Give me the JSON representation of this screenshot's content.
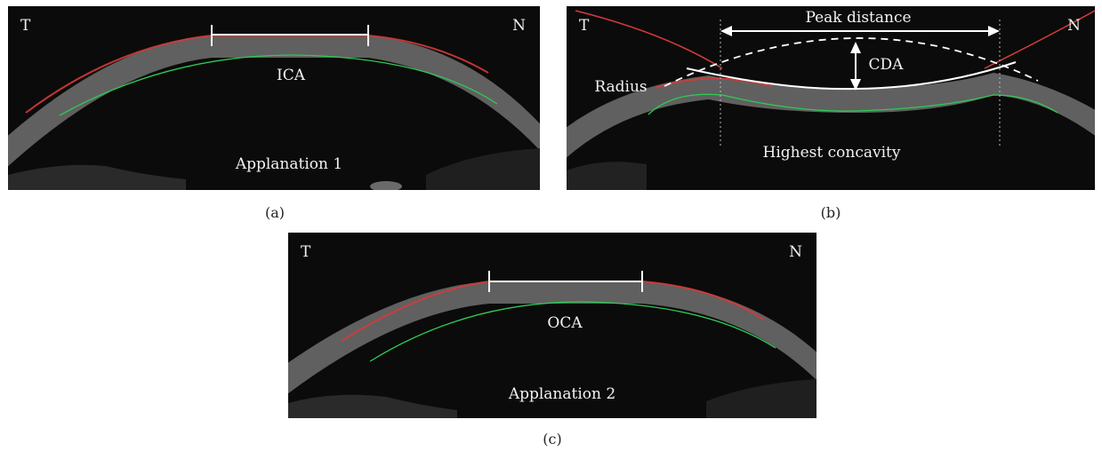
{
  "panels": {
    "a": {
      "corner_left": "T",
      "corner_right": "N",
      "measure_label": "ICA",
      "phase_label": "Applanation 1",
      "caption": "(a)"
    },
    "b": {
      "corner_left": "T",
      "corner_right": "N",
      "peak_label": "Peak distance",
      "radius_label": "Radius",
      "cda_label": "CDA",
      "phase_label": "Highest concavity",
      "caption": "(b)"
    },
    "c": {
      "corner_left": "T",
      "corner_right": "N",
      "measure_label": "OCA",
      "phase_label": "Applanation 2",
      "caption": "(c)"
    }
  },
  "colors": {
    "background": "#0b0b0b",
    "cornea": "#8c8c8c",
    "anterior_edge": "#d63a3a",
    "posterior_edge": "#2ecc55",
    "annotation": "#ffffff"
  }
}
